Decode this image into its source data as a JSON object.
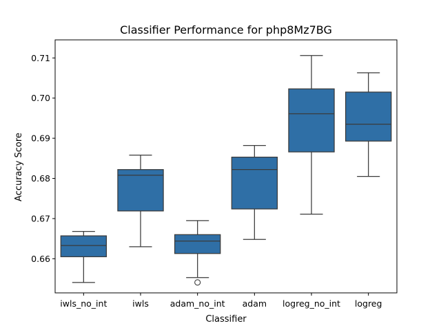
{
  "chart_data": {
    "type": "box",
    "title": "Classifier Performance for php8Mz7BG",
    "xlabel": "Classifier",
    "ylabel": "Accuracy Score",
    "ylim": [
      0.6515,
      0.7145
    ],
    "yticks": [
      0.66,
      0.67,
      0.68,
      0.69,
      0.7,
      0.71
    ],
    "ytick_labels": [
      "0.66",
      "0.67",
      "0.68",
      "0.69",
      "0.70",
      "0.71"
    ],
    "grid": false,
    "box_color": "#2f6fa6",
    "line_color": "#3a3a3a",
    "categories": [
      "iwls_no_int",
      "iwls",
      "adam_no_int",
      "adam",
      "logreg_no_int",
      "logreg"
    ],
    "boxes": [
      {
        "category": "iwls_no_int",
        "whisker_low": 0.6541,
        "q1": 0.6605,
        "median": 0.6633,
        "q3": 0.6657,
        "whisker_high": 0.6668,
        "outliers": []
      },
      {
        "category": "iwls",
        "whisker_low": 0.663,
        "q1": 0.6719,
        "median": 0.6808,
        "q3": 0.6822,
        "whisker_high": 0.6858,
        "outliers": []
      },
      {
        "category": "adam_no_int",
        "whisker_low": 0.6553,
        "q1": 0.6613,
        "median": 0.6644,
        "q3": 0.666,
        "whisker_high": 0.6695,
        "outliers": [
          0.6541
        ]
      },
      {
        "category": "adam",
        "whisker_low": 0.6648,
        "q1": 0.6724,
        "median": 0.6822,
        "q3": 0.6853,
        "whisker_high": 0.6882,
        "outliers": []
      },
      {
        "category": "logreg_no_int",
        "whisker_low": 0.6711,
        "q1": 0.6866,
        "median": 0.6961,
        "q3": 0.7023,
        "whisker_high": 0.7106,
        "outliers": []
      },
      {
        "category": "logreg",
        "whisker_low": 0.6805,
        "q1": 0.6893,
        "median": 0.6935,
        "q3": 0.7015,
        "whisker_high": 0.7063,
        "outliers": []
      }
    ]
  }
}
